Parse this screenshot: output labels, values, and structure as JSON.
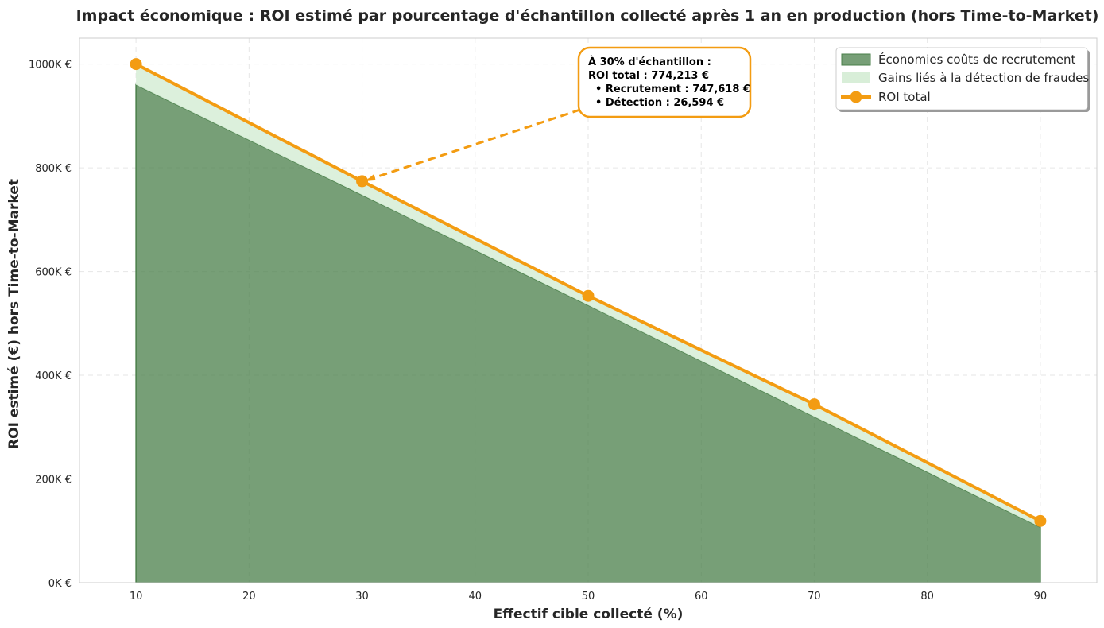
{
  "chart_data": {
    "type": "area",
    "title": "Impact économique : ROI estimé par pourcentage d'échantillon collecté après 1 an en production (hors Time-to-Market)",
    "xlabel": "Effectif cible collecté (%)",
    "ylabel": "ROI estimé (€) hors Time-to-Market",
    "x": [
      10,
      30,
      50,
      70,
      90
    ],
    "xlim": [
      5,
      95
    ],
    "ylim": [
      0,
      1050000
    ],
    "x_ticks": [
      10,
      20,
      30,
      40,
      50,
      60,
      70,
      80,
      90
    ],
    "x_tick_labels": [
      "10",
      "20",
      "30",
      "40",
      "50",
      "60",
      "70",
      "80",
      "90"
    ],
    "y_ticks": [
      0,
      200000,
      400000,
      600000,
      800000,
      1000000
    ],
    "y_tick_labels": [
      "0K €",
      "200K €",
      "400K €",
      "600K €",
      "800K €",
      "1000K €"
    ],
    "grid": true,
    "legend_position": "top-right",
    "series": [
      {
        "name": "Économies coûts de recrutement",
        "kind": "stacked-area",
        "color": "#4a7f4a",
        "values": [
          960000,
          747618,
          535000,
          320000,
          107000
        ]
      },
      {
        "name": "Gains liés à la détection de fraudes",
        "kind": "stacked-area",
        "color": "#d8eed8",
        "values": [
          40000,
          26594,
          18000,
          24000,
          12000
        ]
      },
      {
        "name": "ROI total",
        "kind": "line",
        "color": "#f39c12",
        "values": [
          1000000,
          774213,
          553000,
          344000,
          119000
        ]
      }
    ],
    "annotation": {
      "x": 30,
      "y": 774213,
      "lines": [
        "À 30% d'échantillon :",
        "ROI total : 774,213 €",
        "  • Recrutement : 747,618 €",
        "  • Détection : 26,594 €"
      ]
    }
  }
}
